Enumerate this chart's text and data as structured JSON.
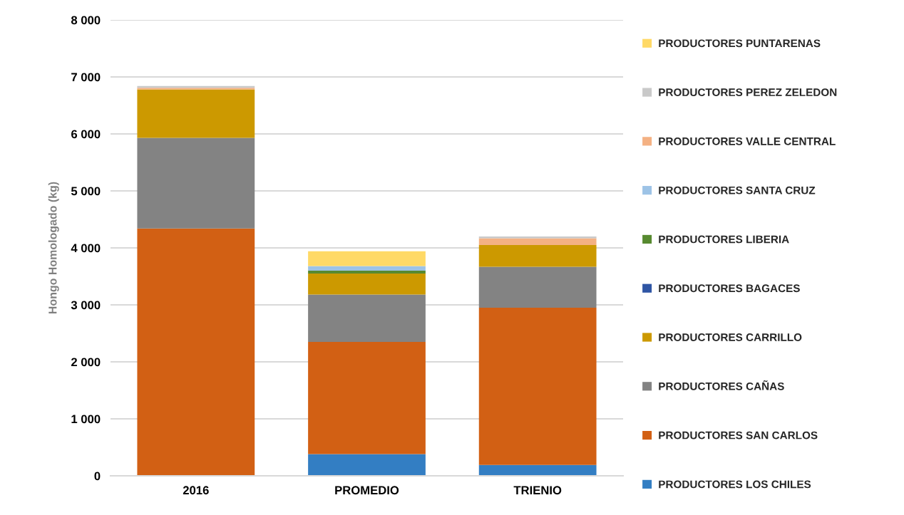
{
  "chart_data": {
    "type": "bar",
    "stacked": true,
    "ylabel": "Hongo Homologado (kg)",
    "categories": [
      "2016",
      "PROMEDIO",
      "TRIENIO"
    ],
    "ylim": [
      0,
      8000
    ],
    "yticks": [
      0,
      {
        "value": 1000,
        "label": "1 000"
      },
      {
        "value": 2000,
        "label": "2 000"
      },
      {
        "value": 3000,
        "label": "3 000"
      },
      {
        "value": 4000,
        "label": "4 000"
      },
      {
        "value": 5000,
        "label": "5 000"
      },
      {
        "value": 6000,
        "label": "6 000"
      },
      {
        "value": 7000,
        "label": "7 000"
      },
      {
        "value": 8000,
        "label": "8 000"
      }
    ],
    "grid": "y",
    "legend": "right",
    "series": [
      {
        "name": "PRODUCTORES LOS CHILES",
        "color": "#337ec3",
        "values": [
          null,
          380,
          190
        ]
      },
      {
        "name": "PRODUCTORES SAN CARLOS",
        "color": "#d26014",
        "values": [
          4340,
          1970,
          2760
        ]
      },
      {
        "name": "PRODUCTORES CAÑAS",
        "color": "#838383",
        "values": [
          1590,
          830,
          720
        ]
      },
      {
        "name": "PRODUCTORES CARRILLO",
        "color": "#cc9900",
        "values": [
          850,
          370,
          380
        ]
      },
      {
        "name": "PRODUCTORES BAGACES",
        "color": "#2f55a4",
        "values": [
          null,
          null,
          null
        ]
      },
      {
        "name": "PRODUCTORES LIBERIA",
        "color": "#578a30",
        "values": [
          null,
          50,
          null
        ]
      },
      {
        "name": "PRODUCTORES SANTA CRUZ",
        "color": "#9dc3e6",
        "values": [
          null,
          80,
          null
        ]
      },
      {
        "name": "PRODUCTORES VALLE CENTRAL",
        "color": "#f4b183",
        "values": [
          30,
          null,
          120
        ]
      },
      {
        "name": "PRODUCTORES PEREZ ZELEDON",
        "color": "#c9c9c9",
        "values": [
          30,
          null,
          30
        ]
      },
      {
        "name": "PRODUCTORES PUNTARENAS",
        "color": "#ffd966",
        "values": [
          null,
          260,
          null
        ]
      }
    ]
  }
}
